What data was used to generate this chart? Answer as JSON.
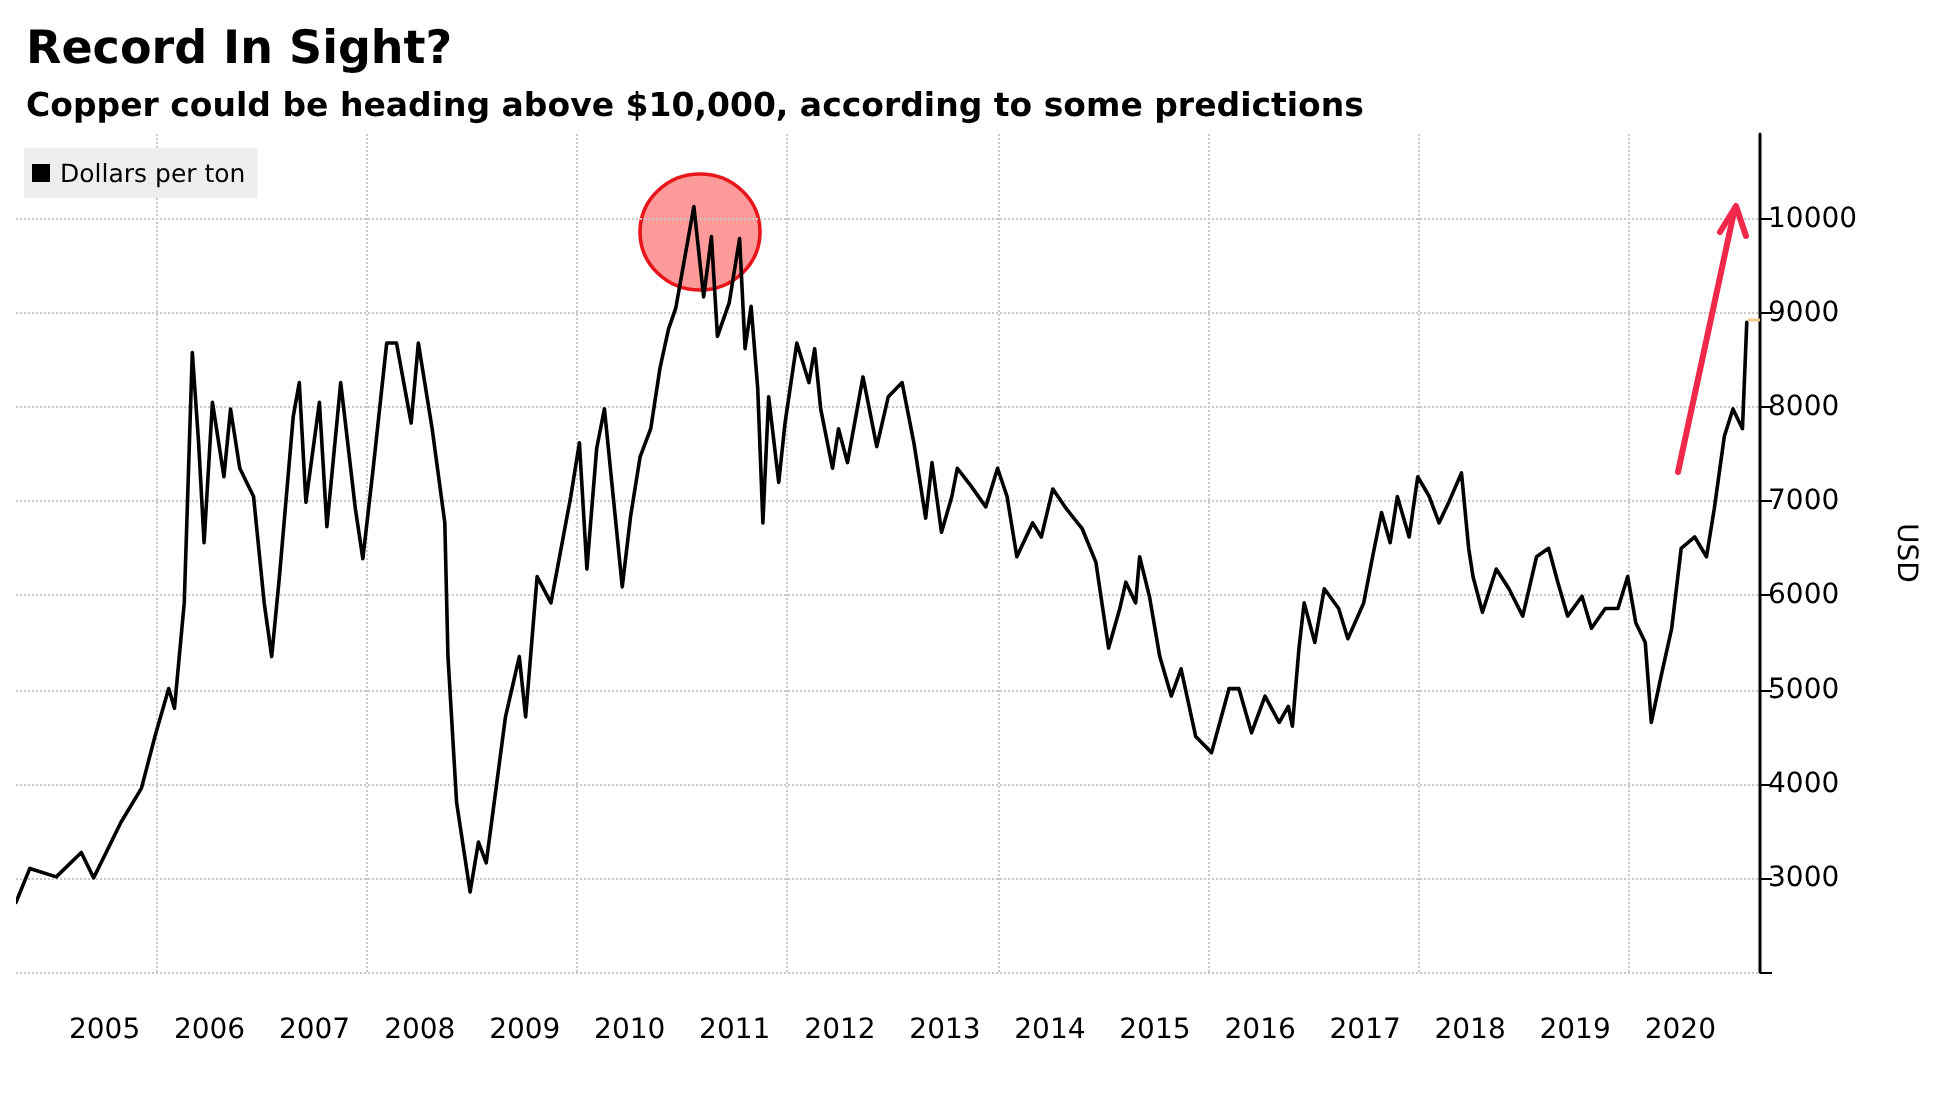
{
  "chart_data": {
    "type": "line",
    "title": "Record In Sight?",
    "subtitle": "Copper could be heading above $10,000, according to some predictions",
    "ylabel": "USD",
    "legend": "top left",
    "grid": true,
    "marker": "none",
    "line_style": "solid",
    "xlim": [
      "2004-08-28",
      "2021-04-05"
    ],
    "xticks": [
      {
        "value": "2005-07-02",
        "label": "2005"
      },
      {
        "value": "2006-01-01",
        "label": null
      },
      {
        "value": "2006-07-02",
        "label": "2006"
      },
      {
        "value": "2007-07-02",
        "label": "2007"
      },
      {
        "value": "2008-01-01",
        "label": null
      },
      {
        "value": "2008-07-02",
        "label": "2008"
      },
      {
        "value": "2009-07-02",
        "label": "2009"
      },
      {
        "value": "2010-01-01",
        "label": null
      },
      {
        "value": "2010-07-02",
        "label": "2010"
      },
      {
        "value": "2011-07-02",
        "label": "2011"
      },
      {
        "value": "2012-01-01",
        "label": null
      },
      {
        "value": "2012-07-02",
        "label": "2012"
      },
      {
        "value": "2013-07-02",
        "label": "2013"
      },
      {
        "value": "2014-01-01",
        "label": null
      },
      {
        "value": "2014-07-02",
        "label": "2014"
      },
      {
        "value": "2015-07-02",
        "label": "2015"
      },
      {
        "value": "2016-01-01",
        "label": null
      },
      {
        "value": "2016-07-02",
        "label": "2016"
      },
      {
        "value": "2017-07-02",
        "label": "2017"
      },
      {
        "value": "2018-01-01",
        "label": null
      },
      {
        "value": "2018-07-02",
        "label": "2018"
      },
      {
        "value": "2019-07-02",
        "label": "2019"
      },
      {
        "value": "2020-01-01",
        "label": null
      },
      {
        "value": "2020-07-02",
        "label": "2020"
      }
    ],
    "ylim": [
      2000,
      10900
    ],
    "yticks": [
      {
        "value": 2000,
        "label": null
      },
      3000,
      4000,
      5000,
      6000,
      7000,
      8000,
      9000,
      10000
    ],
    "series": [
      {
        "name": "Dollars per ton",
        "color": "#000000",
        "x": [
          "2004-08-28",
          "2004-10-15",
          "2005-01-15",
          "2005-04-12",
          "2005-05-25",
          "2005-08-28",
          "2005-11-07",
          "2005-12-24",
          "2006-02-10",
          "2006-03-02",
          "2006-04-05",
          "2006-05-03",
          "2006-05-25",
          "2006-06-13",
          "2006-07-12",
          "2006-08-21",
          "2006-09-13",
          "2006-10-15",
          "2006-12-02",
          "2007-01-08",
          "2007-02-03",
          "2007-03-02",
          "2007-04-19",
          "2007-05-10",
          "2007-06-02",
          "2007-07-19",
          "2007-08-14",
          "2007-10-01",
          "2007-11-21",
          "2007-12-17",
          "2008-01-22",
          "2008-03-09",
          "2008-04-12",
          "2008-06-02",
          "2008-06-27",
          "2008-08-14",
          "2008-09-27",
          "2008-10-08",
          "2008-11-07",
          "2008-12-24",
          "2009-01-22",
          "2009-02-18",
          "2009-04-26",
          "2009-06-13",
          "2009-07-05",
          "2009-08-14",
          "2009-10-01",
          "2009-12-09",
          "2010-01-08",
          "2010-02-03",
          "2010-03-09",
          "2010-04-05",
          "2010-06-06",
          "2010-07-05",
          "2010-08-07",
          "2010-09-13",
          "2010-10-15",
          "2010-11-14",
          "2010-12-09",
          "2011-02-10",
          "2011-03-16",
          "2011-04-12",
          "2011-05-03",
          "2011-06-13",
          "2011-07-19",
          "2011-08-07",
          "2011-08-28",
          "2011-09-20",
          "2011-10-08",
          "2011-10-28",
          "2011-12-02",
          "2011-12-24",
          "2012-02-03",
          "2012-03-16",
          "2012-04-05",
          "2012-04-26",
          "2012-06-06",
          "2012-06-27",
          "2012-07-28",
          "2012-09-20",
          "2012-11-07",
          "2012-12-17",
          "2013-02-03",
          "2013-03-16",
          "2013-04-26",
          "2013-05-18",
          "2013-06-20",
          "2013-07-26",
          "2013-08-14",
          "2013-10-01",
          "2013-11-21",
          "2014-01-01",
          "2014-02-03",
          "2014-03-09",
          "2014-05-03",
          "2014-06-02",
          "2014-07-12",
          "2014-08-28",
          "2014-10-22",
          "2014-12-09",
          "2015-01-22",
          "2015-03-02",
          "2015-03-23",
          "2015-04-26",
          "2015-05-10",
          "2015-06-13",
          "2015-07-19",
          "2015-08-28",
          "2015-10-01",
          "2015-11-21",
          "2016-01-15",
          "2016-03-16",
          "2016-04-19",
          "2016-06-02",
          "2016-07-19",
          "2016-09-06",
          "2016-10-08",
          "2016-10-22",
          "2016-11-14",
          "2016-12-02",
          "2017-01-08",
          "2017-02-10",
          "2017-04-01",
          "2017-05-03",
          "2017-06-27",
          "2017-07-28",
          "2017-08-28",
          "2017-09-27",
          "2017-10-22",
          "2017-12-02",
          "2018-01-01",
          "2018-02-10",
          "2018-03-16",
          "2018-04-19",
          "2018-06-02",
          "2018-06-27",
          "2018-07-12",
          "2018-08-14",
          "2018-10-01",
          "2018-11-14",
          "2019-01-01",
          "2019-02-18",
          "2019-04-01",
          "2019-05-03",
          "2019-06-06",
          "2019-07-26",
          "2019-08-28",
          "2019-10-15",
          "2019-11-28",
          "2020-01-01",
          "2020-01-29",
          "2020-03-02",
          "2020-03-23",
          "2020-04-26",
          "2020-06-02",
          "2020-07-05",
          "2020-08-21",
          "2020-10-01",
          "2020-10-28",
          "2020-12-02",
          "2021-01-01",
          "2021-02-03",
          "2021-02-18"
        ],
        "values": [
          2740,
          3100,
          3010,
          3270,
          3000,
          3590,
          3950,
          4500,
          5010,
          4800,
          5920,
          8580,
          7620,
          6560,
          8050,
          7260,
          7980,
          7350,
          7050,
          5920,
          5350,
          6200,
          7900,
          8260,
          6990,
          8050,
          6730,
          8260,
          6920,
          6390,
          7350,
          8680,
          8680,
          7830,
          8680,
          7770,
          6770,
          5350,
          3800,
          2850,
          3380,
          3160,
          4710,
          5350,
          4710,
          6200,
          5920,
          7050,
          7620,
          6280,
          7560,
          7980,
          6090,
          6840,
          7470,
          7770,
          8410,
          8830,
          9050,
          10130,
          9170,
          9810,
          8750,
          9110,
          9790,
          8620,
          9070,
          8200,
          6770,
          8110,
          7200,
          7830,
          8680,
          8260,
          8620,
          7980,
          7350,
          7770,
          7410,
          8320,
          7580,
          8110,
          8260,
          7620,
          6820,
          7410,
          6670,
          7050,
          7350,
          7160,
          6940,
          7350,
          7050,
          6410,
          6770,
          6620,
          7130,
          6920,
          6710,
          6350,
          5440,
          5860,
          6140,
          5920,
          6410,
          5990,
          5350,
          4930,
          5220,
          4500,
          4330,
          5010,
          5010,
          4540,
          4930,
          4650,
          4820,
          4610,
          5440,
          5920,
          5500,
          6070,
          5860,
          5540,
          5920,
          6410,
          6880,
          6560,
          7050,
          6620,
          7260,
          7050,
          6770,
          6990,
          7300,
          6500,
          6200,
          5820,
          6280,
          6070,
          5780,
          6410,
          6500,
          6140,
          5780,
          5990,
          5650,
          5860,
          5860,
          6200,
          5710,
          5500,
          4650,
          5140,
          5650,
          6500,
          6620,
          6410,
          6920,
          7690,
          7980,
          7770,
          8900
        ]
      }
    ]
  }
}
